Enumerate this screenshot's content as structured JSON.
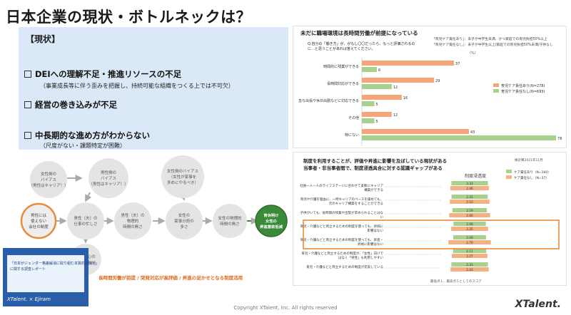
{
  "title": "日本企業の現状・ボトルネックは？",
  "status": {
    "header": "【現状】",
    "items": [
      {
        "label": "DEIへの理解不足・推進リソースの不足",
        "sub": "（事業成長等に伴う歪みを把握し、持続可能な組織をつくる上では不可欠）"
      },
      {
        "label": "経営の巻き込みが不足",
        "sub": ""
      },
      {
        "label": "中長期的な進め方がわからない",
        "sub": "（尺度がない・課題特定が困難）"
      }
    ]
  },
  "chart1": {
    "title": "未だに職場環境は長時間労働が前提になっている",
    "note1": "「育児ケア責任あり」：未子が中学生未満、かつ家庭での育児負担50%以上",
    "note2": "「育児ケア責任なし」：未子が中学生以上/家庭での育児負担50%未満/子供なし",
    "question": "Q.自分の「働き方」が、がもし〇〇だったら、もっと評価されるのに…と思うことがあれば答えてください。",
    "unit": "（%）",
    "legend": [
      "育児ケア責任あり(N=278)",
      "育児ケア責任なし(N=693)"
    ]
  },
  "chart_data": [
    {
      "type": "bar",
      "title": "未だに職場環境は長時間労働が前提になっている",
      "categories": [
        "時間的に残業ができる",
        "長時間対応ができる",
        "急な出張や休日出勤などに対応できる",
        "その他",
        "特にない"
      ],
      "series": [
        {
          "name": "育児ケア責任あり(N=278)",
          "values": [
            37,
            29,
            16,
            12,
            43
          ]
        },
        {
          "name": "育児ケア責任なし(N=693)",
          "values": [
            6,
            12,
            5,
            5,
            78
          ]
        }
      ],
      "xlim": [
        0,
        80
      ],
      "colors": [
        "#f4a57a",
        "#a9d18e"
      ]
    },
    {
      "type": "bar",
      "title": "制度を利用することが、評価や昇進に影響を及ぼしている現状がある",
      "categories": [
        "社員一人一人のライフステージに合わせて柔軟にキャリア構築ができる",
        "育児や介護を理由に、一時キャリアのペースを緩めても、元のキャリア構築をすることができる",
        "子供がいても、長時間の残業や出張が求められることはない",
        "育児・介護などと両立するための制度を使っても、評価に影響はない",
        "育児・介護などと両立するための制度を使っても、昇進・昇格に影響はない",
        "育児・介護などと両立するための制度が、「女性」向けではなく「男性」も利用しやすい",
        "育児・介護などと両立するための制度が充実している"
      ],
      "series": [
        {
          "name": "ケア責任あり（N=160）",
          "values": [
            2.33,
            2.31,
            2.19,
            2.06,
            2.09,
            2.11,
            2.33
          ]
        },
        {
          "name": "ケア責任なし（N=37）",
          "values": [
            2.46,
            2.53,
            2.6,
            2.35,
            2.7,
            2.27,
            2.43
          ]
        }
      ],
      "colors": [
        "#a9d18e",
        "#f4b183"
      ]
    }
  ],
  "chart2": {
    "title_line1": "制度を利用することが、評価や昇進に影響を及ぼしている現状がある",
    "title_line2": "当事者・非当事者間で、制度浸透具合に対する認識ギャップがある",
    "source": "株計算2021年11月",
    "axis_label": "制度浸透度",
    "legend": [
      "ケア責任あり（N=160）",
      "ケア責任なし（N=37）"
    ],
    "footnote": "最低点１、最高点５としてのスコア",
    "left_values": [
      "2.33",
      "2.31",
      "2.19",
      "2.06",
      "2.09",
      "2.11",
      "2.33"
    ],
    "right_values": [
      "2.46",
      "2.53",
      "2.60",
      "2.35",
      "2.70",
      "2.27",
      "2.43"
    ]
  },
  "flow": {
    "nodes": {
      "female_bias": "女性側の\nバイアス\n（男性はキャリア！）",
      "male_bias": "男性側の\nバイアス\n（男性はキャリア！）",
      "female_bias2": "女性側のバイアス\n（女性が家事を\n多めにやるべき）",
      "company": "男性には\n使えない\n会社の制度",
      "husband_busy": "男性（夫）の\n仕事の忙しさ",
      "husband_time": "男性（夫）の\n物理的\n時間の無さ",
      "wife_share": "女性の\n家事分担の\n多さ",
      "wife_time": "女性の物理的\n時間の無さ",
      "result": "育休明け\n女性の\n昇進意欲低減",
      "male_workplace": "男性中心の\n職場"
    },
    "caption": "長時間労働が前提 / 突発対応が高評価 / 昇進の足かせとなる制度活用"
  },
  "thumbnail": {
    "line1": "「日本がジェンダー格差解消に取り組む本質的な課題」",
    "line2": "に関する調査レポート",
    "brand": "XTalent. × Ejiram"
  },
  "footer": "Copyright XTalent, Inc. All rights reserved",
  "brand": "XTalent."
}
